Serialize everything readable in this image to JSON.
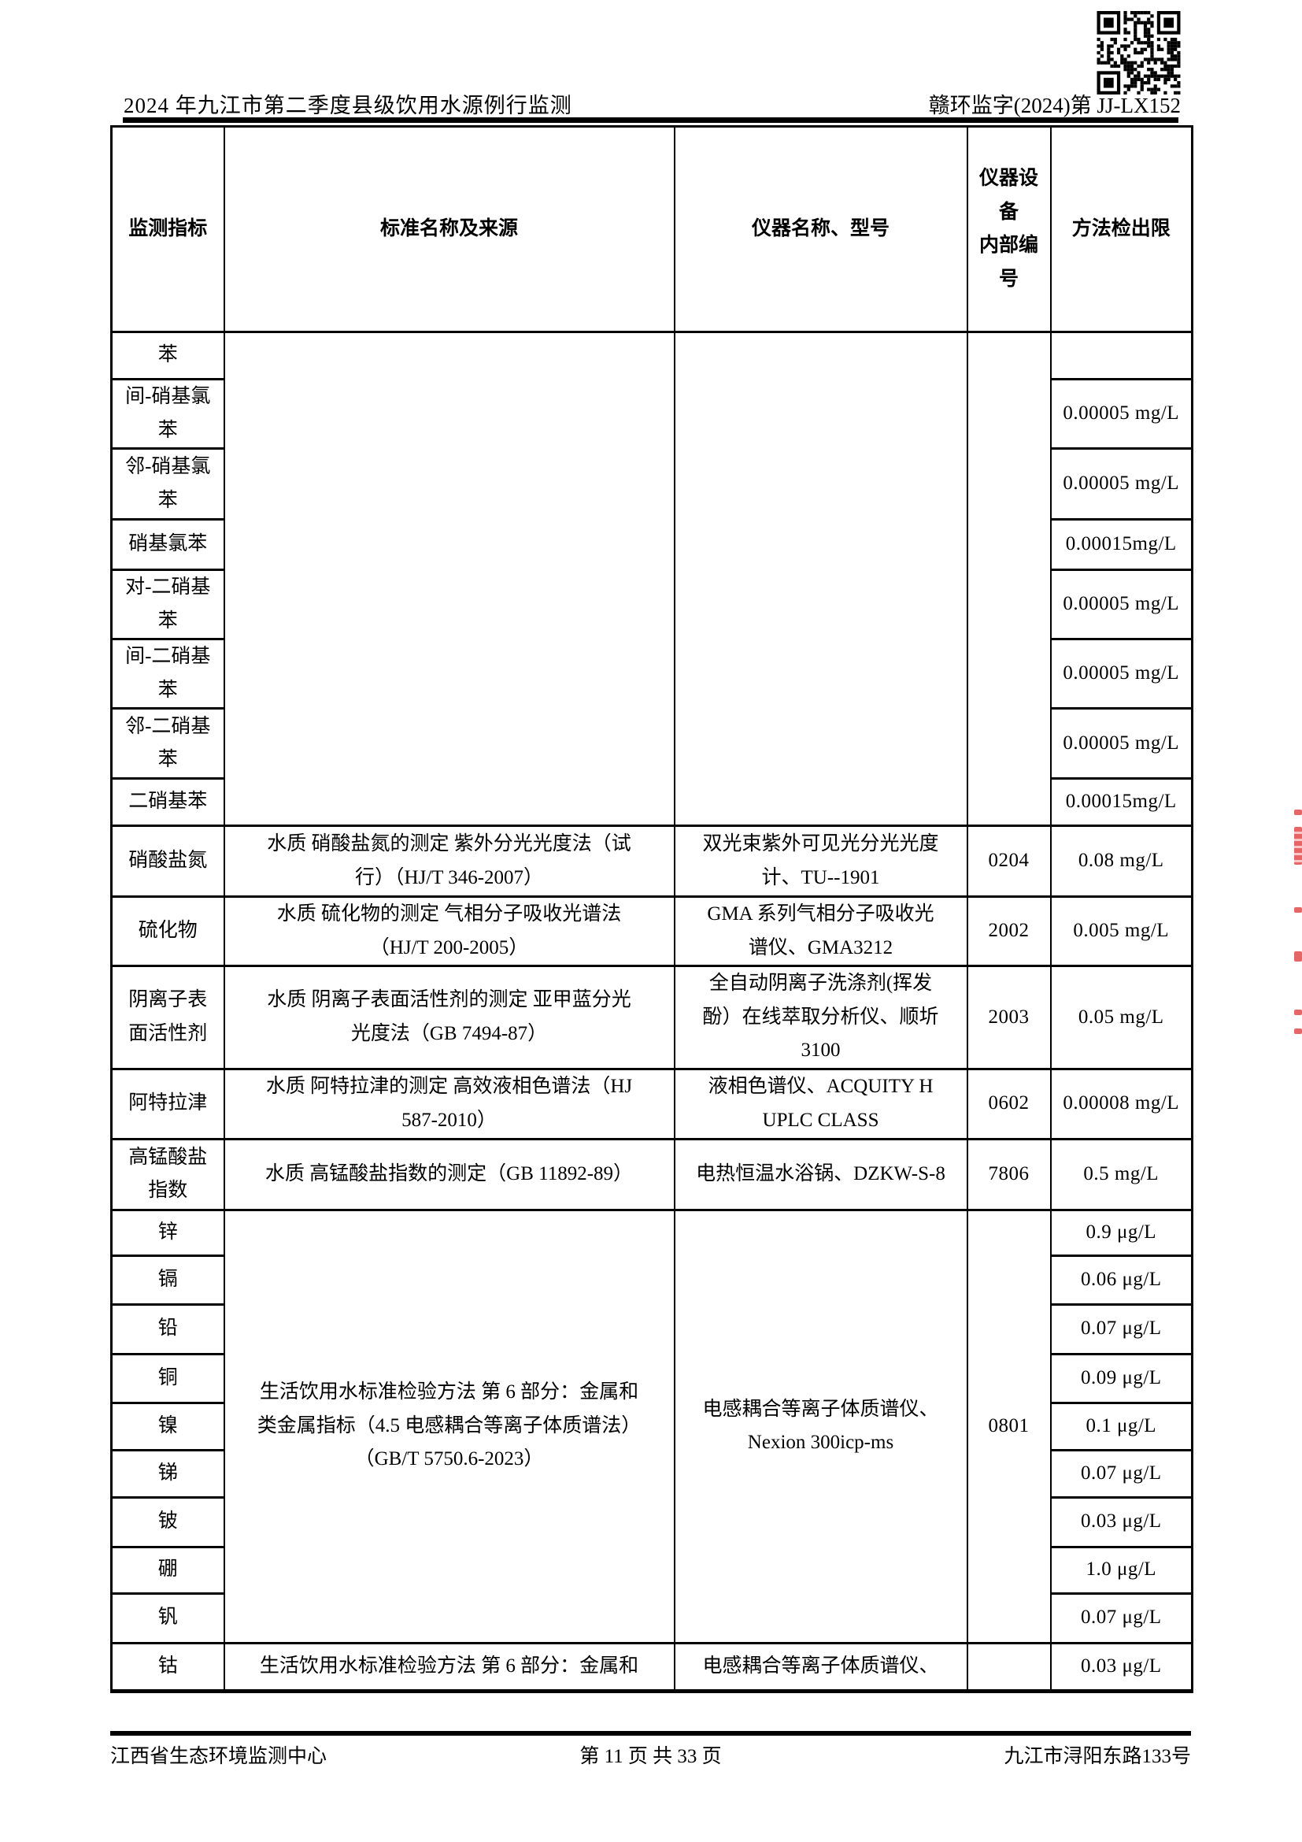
{
  "page_header": {
    "left_title": "2024 年九江市第二季度县级饮用水源例行监测",
    "right_doc_number": "赣环监字(2024)第 JJ-LX152"
  },
  "table": {
    "header": {
      "col1": "监测指标",
      "col2": "标准名称及来源",
      "col3": "仪器名称、型号",
      "col4": "仪器设\n备\n内部编\n号",
      "col5": "方法检出限"
    },
    "group1_rows": [
      {
        "indicator": "苯",
        "limit": ""
      },
      {
        "indicator": "间-硝基氯\n苯",
        "limit": "0.00005 mg/L"
      },
      {
        "indicator": "邻-硝基氯\n苯",
        "limit": "0.00005 mg/L"
      },
      {
        "indicator": "硝基氯苯",
        "limit": "0.00015mg/L"
      },
      {
        "indicator": "对-二硝基\n苯",
        "limit": "0.00005 mg/L"
      },
      {
        "indicator": "间-二硝基\n苯",
        "limit": "0.00005 mg/L"
      },
      {
        "indicator": "邻-二硝基\n苯",
        "limit": "0.00005 mg/L"
      },
      {
        "indicator": "二硝基苯",
        "limit": "0.00015mg/L"
      }
    ],
    "standard_rows": [
      {
        "indicator": "硝酸盐氮",
        "method": "水质  硝酸盐氮的测定  紫外分光光度法（试\n行）（HJ/T 346-2007）",
        "instrument": "双光束紫外可见光分光光度\n计、TU--1901",
        "device_no": "0204",
        "limit": "0.08 mg/L"
      },
      {
        "indicator": "硫化物",
        "method": "水质  硫化物的测定  气相分子吸收光谱法\n（HJ/T 200-2005）",
        "instrument": "GMA 系列气相分子吸收光\n谱仪、GMA3212",
        "device_no": "2002",
        "limit": "0.005 mg/L"
      },
      {
        "indicator": "阴离子表\n面活性剂",
        "method": "水质  阴离子表面活性剂的测定  亚甲蓝分光\n光度法（GB 7494-87）",
        "instrument": "全自动阴离子洗涤剂(挥发\n酚）在线萃取分析仪、顺圻\n3100",
        "device_no": "2003",
        "limit": "0.05 mg/L"
      },
      {
        "indicator": "阿特拉津",
        "method": "水质  阿特拉津的测定  高效液相色谱法（HJ\n587-2010）",
        "instrument": "液相色谱仪、ACQUITY H\nUPLC CLASS",
        "device_no": "0602",
        "limit": "0.00008 mg/L"
      },
      {
        "indicator": "高锰酸盐\n指数",
        "method": "水质  高锰酸盐指数的测定（GB 11892-89）",
        "instrument": "电热恒温水浴锅、DZKW-S-8",
        "device_no": "7806",
        "limit": "0.5 mg/L"
      }
    ],
    "metals_group": {
      "method": "生活饮用水标准检验方法  第 6 部分：金属和\n类金属指标（4.5  电感耦合等离子体质谱法）\n（GB/T 5750.6-2023）",
      "instrument": "电感耦合等离子体质谱仪、\nNexion 300icp-ms",
      "device_no": "0801",
      "items": [
        {
          "indicator": "锌",
          "limit": "0.9 μg/L"
        },
        {
          "indicator": "镉",
          "limit": "0.06 μg/L"
        },
        {
          "indicator": "铅",
          "limit": "0.07 μg/L"
        },
        {
          "indicator": "铜",
          "limit": "0.09 μg/L"
        },
        {
          "indicator": "镍",
          "limit": "0.1 μg/L"
        },
        {
          "indicator": "锑",
          "limit": "0.07 μg/L"
        },
        {
          "indicator": "铍",
          "limit": "0.03 μg/L"
        },
        {
          "indicator": "硼",
          "limit": "1.0 μg/L"
        },
        {
          "indicator": "钒",
          "limit": "0.07 μg/L"
        }
      ]
    },
    "cobalt_row": {
      "indicator": "钴",
      "method": "生活饮用水标准检验方法  第 6 部分：金属和",
      "instrument": "电感耦合等离子体质谱仪、",
      "device_no": "",
      "limit": "0.03 μg/L"
    }
  },
  "page_footer": {
    "left": "江西省生态环境监测中心",
    "center": "第 11 页 共 33  页",
    "right": "九江市浔阳东路133号"
  }
}
